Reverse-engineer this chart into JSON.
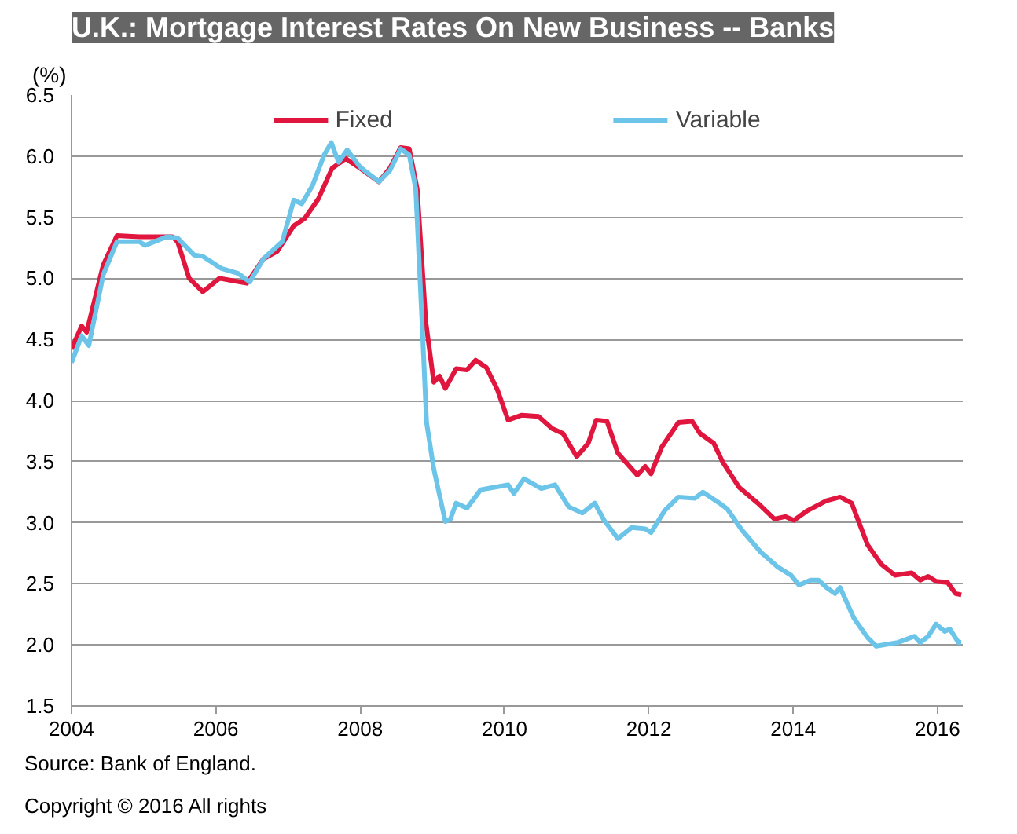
{
  "chart_data": {
    "type": "line",
    "title": "U.K.: Mortgage Interest Rates On New Business -- Banks",
    "ylabel": "(%)",
    "xlim": [
      2004,
      2016.35
    ],
    "xticks": [
      2004,
      2006,
      2008,
      2010,
      2012,
      2014,
      2016
    ],
    "ylim": [
      1.5,
      6.5
    ],
    "yticks": [
      {
        "value": 1.5,
        "label": "1.5"
      },
      {
        "value": 2,
        "label": "2.0"
      },
      {
        "value": 2.5,
        "label": "2.5"
      },
      {
        "value": 3,
        "label": "3.0"
      },
      {
        "value": 3.5,
        "label": "3.5"
      },
      {
        "value": 4,
        "label": "4.0"
      },
      {
        "value": 4.5,
        "label": "4.5"
      },
      {
        "value": 5,
        "label": "5.0"
      },
      {
        "value": 5.5,
        "label": "5.5"
      },
      {
        "value": 6,
        "label": "6.0"
      },
      {
        "value": 6.5,
        "label": "6.5"
      }
    ],
    "grid": "y",
    "legend": "top",
    "line_style": "solid",
    "series": [
      {
        "name": "Fixed",
        "color": "#e0163f",
        "x": [
          2004.0,
          2004.14,
          2004.21,
          2004.44,
          2004.63,
          2004.94,
          2005.4,
          2005.47,
          2005.63,
          2005.82,
          2006.05,
          2006.24,
          2006.43,
          2006.66,
          2006.85,
          2007.08,
          2007.23,
          2007.42,
          2007.61,
          2007.8,
          2008.0,
          2008.26,
          2008.41,
          2008.56,
          2008.68,
          2008.79,
          2008.91,
          2009.02,
          2009.1,
          2009.18,
          2009.33,
          2009.48,
          2009.6,
          2009.75,
          2009.9,
          2010.05,
          2010.24,
          2010.47,
          2010.66,
          2010.81,
          2011.0,
          2011.16,
          2011.27,
          2011.42,
          2011.57,
          2011.84,
          2011.95,
          2012.03,
          2012.18,
          2012.41,
          2012.6,
          2012.71,
          2012.9,
          2013.02,
          2013.25,
          2013.51,
          2013.74,
          2013.89,
          2014.01,
          2014.2,
          2014.46,
          2014.65,
          2014.81,
          2015.03,
          2015.22,
          2015.41,
          2015.64,
          2015.76,
          2015.87,
          2015.98,
          2016.14,
          2016.25,
          2016.33
        ],
        "values": [
          4.42,
          4.61,
          4.56,
          5.11,
          5.35,
          5.34,
          5.34,
          5.3,
          5.0,
          4.89,
          5.0,
          4.98,
          4.96,
          5.16,
          5.22,
          5.43,
          5.49,
          5.65,
          5.9,
          5.98,
          5.9,
          5.79,
          5.9,
          6.07,
          6.06,
          5.73,
          4.64,
          4.15,
          4.2,
          4.1,
          4.26,
          4.25,
          4.33,
          4.27,
          4.09,
          3.84,
          3.88,
          3.87,
          3.77,
          3.73,
          3.54,
          3.65,
          3.84,
          3.83,
          3.57,
          3.39,
          3.46,
          3.4,
          3.62,
          3.82,
          3.83,
          3.73,
          3.65,
          3.5,
          3.29,
          3.16,
          3.03,
          3.05,
          3.02,
          3.1,
          3.18,
          3.21,
          3.16,
          2.82,
          2.66,
          2.57,
          2.59,
          2.53,
          2.56,
          2.52,
          2.51,
          2.42,
          2.41
        ]
      },
      {
        "name": "Variable",
        "color": "#6cc5e8",
        "x": [
          2004.0,
          2004.14,
          2004.24,
          2004.44,
          2004.63,
          2004.94,
          2005.02,
          2005.32,
          2005.47,
          2005.7,
          2005.82,
          2006.08,
          2006.31,
          2006.47,
          2006.66,
          2006.92,
          2007.08,
          2007.19,
          2007.34,
          2007.5,
          2007.6,
          2007.7,
          2007.82,
          2008.0,
          2008.26,
          2008.41,
          2008.56,
          2008.68,
          2008.77,
          2008.87,
          2008.92,
          2009.02,
          2009.18,
          2009.25,
          2009.33,
          2009.48,
          2009.67,
          2009.86,
          2010.05,
          2010.13,
          2010.27,
          2010.51,
          2010.7,
          2010.89,
          2011.08,
          2011.25,
          2011.38,
          2011.57,
          2011.76,
          2011.95,
          2012.03,
          2012.22,
          2012.41,
          2012.64,
          2012.75,
          2012.98,
          2013.09,
          2013.29,
          2013.55,
          2013.78,
          2013.97,
          2014.08,
          2014.24,
          2014.35,
          2014.46,
          2014.58,
          2014.65,
          2014.84,
          2015.03,
          2015.15,
          2015.45,
          2015.68,
          2015.76,
          2015.87,
          2015.98,
          2016.1,
          2016.17,
          2016.29,
          2016.33
        ],
        "values": [
          4.31,
          4.53,
          4.45,
          5.03,
          5.3,
          5.3,
          5.27,
          5.34,
          5.33,
          5.19,
          5.18,
          5.08,
          5.04,
          4.97,
          5.16,
          5.3,
          5.64,
          5.61,
          5.76,
          6.01,
          6.11,
          5.95,
          6.05,
          5.91,
          5.79,
          5.88,
          6.06,
          6.01,
          5.73,
          4.48,
          3.82,
          3.44,
          3.01,
          3.03,
          3.16,
          3.12,
          3.27,
          3.29,
          3.31,
          3.24,
          3.36,
          3.28,
          3.31,
          3.13,
          3.08,
          3.16,
          3.02,
          2.87,
          2.96,
          2.95,
          2.92,
          3.1,
          3.21,
          3.2,
          3.25,
          3.16,
          3.11,
          2.94,
          2.76,
          2.64,
          2.57,
          2.49,
          2.53,
          2.53,
          2.47,
          2.42,
          2.47,
          2.22,
          2.06,
          1.99,
          2.02,
          2.07,
          2.02,
          2.07,
          2.17,
          2.11,
          2.13,
          2.02,
          2.02
        ]
      }
    ],
    "annotations": [
      "Source: Bank of England.",
      "Copyright © 2016 All rights"
    ]
  }
}
